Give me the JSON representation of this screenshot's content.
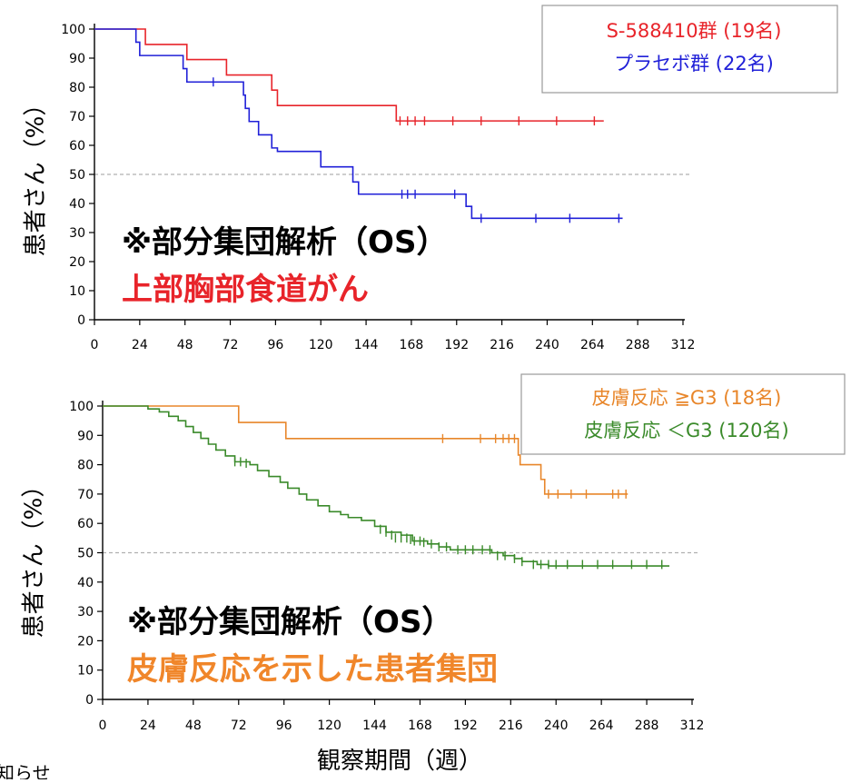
{
  "charts": [
    {
      "ylabel": "患者さん（%）",
      "legend": [
        {
          "label": "S-588410群 (19名)",
          "color": "#e8242a"
        },
        {
          "label": "プラセボ群 (22名)",
          "color": "#2020d8"
        }
      ],
      "annotation": {
        "line1": "※部分集団解析（OS）",
        "line2": "上部胸部食道がん",
        "line2_color": "#e8242a"
      }
    },
    {
      "ylabel": "患者さん（%）",
      "legend": [
        {
          "label": "皮膚反応 ≧G3 (18名)",
          "color": "#e8862a"
        },
        {
          "label": "皮膚反応 ＜G3 (120名)",
          "color": "#3a8a2a"
        }
      ],
      "annotation": {
        "line1": "※部分集団解析（OS）",
        "line2": "皮膚反応を示した患者集団",
        "line2_color": "#f0862a"
      }
    }
  ],
  "shared_xlabel": "観察期間（週）",
  "footer_fragment": "知らせ",
  "chart_data": [
    {
      "type": "line",
      "subtype": "kaplan-meier-step",
      "title": "",
      "xlabel": "",
      "ylabel": "患者さん（%）",
      "xlim": [
        0,
        312
      ],
      "ylim": [
        0,
        100
      ],
      "x_ticks": [
        0,
        24,
        48,
        72,
        96,
        120,
        144,
        168,
        192,
        216,
        240,
        264,
        288,
        312
      ],
      "y_ticks": [
        0,
        10,
        20,
        30,
        40,
        50,
        60,
        70,
        80,
        90,
        100
      ],
      "reference_line_y": 50,
      "legend_position": "top-right",
      "grid": false,
      "series": [
        {
          "name": "S-588410群 (19名)",
          "color": "#e8242a",
          "steps": [
            [
              0,
              100
            ],
            [
              27,
              94.7
            ],
            [
              49,
              89.5
            ],
            [
              70,
              84.2
            ],
            [
              94,
              79
            ],
            [
              97,
              73.7
            ],
            [
              160,
              68.4
            ],
            [
              270,
              68.4
            ]
          ],
          "censored": [
            [
              162,
              68.4
            ],
            [
              166,
              68.4
            ],
            [
              170,
              68.4
            ],
            [
              175,
              68.4
            ],
            [
              190,
              68.4
            ],
            [
              205,
              68.4
            ],
            [
              225,
              68.4
            ],
            [
              245,
              68.4
            ],
            [
              265,
              68.4
            ]
          ]
        },
        {
          "name": "プラセボ群 (22名)",
          "color": "#2020d8",
          "steps": [
            [
              0,
              100
            ],
            [
              22,
              95.5
            ],
            [
              24,
              90.9
            ],
            [
              47,
              86.4
            ],
            [
              49,
              81.8
            ],
            [
              79,
              77.3
            ],
            [
              80,
              72.7
            ],
            [
              82,
              68.2
            ],
            [
              87,
              63.6
            ],
            [
              94,
              59.1
            ],
            [
              97,
              57.9
            ],
            [
              120,
              52.6
            ],
            [
              137,
              47.4
            ],
            [
              140,
              43.2
            ],
            [
              197,
              39
            ],
            [
              200,
              34.9
            ],
            [
              280,
              34.9
            ]
          ],
          "censored": [
            [
              63,
              81.8
            ],
            [
              163,
              43.2
            ],
            [
              166,
              43.2
            ],
            [
              170,
              43.2
            ],
            [
              191,
              43.2
            ],
            [
              205,
              34.9
            ],
            [
              234,
              34.9
            ],
            [
              252,
              34.9
            ],
            [
              278,
              34.9
            ]
          ]
        }
      ]
    },
    {
      "type": "line",
      "subtype": "kaplan-meier-step",
      "title": "",
      "xlabel": "観察期間（週）",
      "ylabel": "患者さん（%）",
      "xlim": [
        0,
        312
      ],
      "ylim": [
        0,
        100
      ],
      "x_ticks": [
        0,
        24,
        48,
        72,
        96,
        120,
        144,
        168,
        192,
        216,
        240,
        264,
        288,
        312
      ],
      "y_ticks": [
        0,
        10,
        20,
        30,
        40,
        50,
        60,
        70,
        80,
        90,
        100
      ],
      "reference_line_y": 50,
      "legend_position": "top-right",
      "grid": false,
      "series": [
        {
          "name": "皮膚反応 ≧G3 (18名)",
          "color": "#e8862a",
          "steps": [
            [
              0,
              100
            ],
            [
              72,
              94.4
            ],
            [
              97,
              88.9
            ],
            [
              220,
              83.3
            ],
            [
              221,
              80
            ],
            [
              232,
              75
            ],
            [
              234,
              70
            ],
            [
              278,
              70
            ]
          ],
          "censored": [
            [
              180,
              88.9
            ],
            [
              200,
              88.9
            ],
            [
              208,
              88.9
            ],
            [
              212,
              88.9
            ],
            [
              215,
              88.9
            ],
            [
              218,
              88.9
            ],
            [
              236,
              70
            ],
            [
              241,
              70
            ],
            [
              248,
              70
            ],
            [
              256,
              70
            ],
            [
              270,
              70
            ],
            [
              273,
              70
            ],
            [
              277,
              70
            ]
          ]
        },
        {
          "name": "皮膚反応 ＜G3 (120名)",
          "color": "#3a8a2a",
          "steps": [
            [
              0,
              100
            ],
            [
              17,
              100
            ],
            [
              24,
              99
            ],
            [
              30,
              98
            ],
            [
              35,
              96.5
            ],
            [
              40,
              95
            ],
            [
              44,
              93
            ],
            [
              48,
              91
            ],
            [
              52,
              89
            ],
            [
              56,
              87
            ],
            [
              60,
              85
            ],
            [
              65,
              83
            ],
            [
              70,
              81
            ],
            [
              78,
              80
            ],
            [
              82,
              78
            ],
            [
              88,
              76
            ],
            [
              94,
              74
            ],
            [
              98,
              72
            ],
            [
              104,
              70
            ],
            [
              108,
              68
            ],
            [
              114,
              66
            ],
            [
              120,
              64
            ],
            [
              126,
              63
            ],
            [
              130,
              62
            ],
            [
              137,
              61
            ],
            [
              144,
              59
            ],
            [
              150,
              57
            ],
            [
              158,
              56
            ],
            [
              164,
              54
            ],
            [
              172,
              53
            ],
            [
              178,
              52
            ],
            [
              184,
              51
            ],
            [
              198,
              51
            ],
            [
              206,
              50
            ],
            [
              212,
              49
            ],
            [
              218,
              48
            ],
            [
              222,
              47
            ],
            [
              230,
              46
            ],
            [
              236,
              45.5
            ],
            [
              300,
              45.5
            ]
          ],
          "censored": [
            [
              70,
              81
            ],
            [
              73,
              81
            ],
            [
              76,
              80.5
            ],
            [
              147,
              58
            ],
            [
              150,
              57
            ],
            [
              153,
              56
            ],
            [
              155,
              55
            ],
            [
              158,
              55
            ],
            [
              161,
              55
            ],
            [
              163,
              54.5
            ],
            [
              165,
              54
            ],
            [
              168,
              54
            ],
            [
              170,
              53.5
            ],
            [
              174,
              53
            ],
            [
              178,
              52
            ],
            [
              182,
              52
            ],
            [
              188,
              51
            ],
            [
              192,
              51
            ],
            [
              196,
              51
            ],
            [
              201,
              51
            ],
            [
              205,
              51
            ],
            [
              209,
              49
            ],
            [
              213,
              49
            ],
            [
              218,
              48
            ],
            [
              222,
              47
            ],
            [
              228,
              46
            ],
            [
              232,
              46
            ],
            [
              236,
              46
            ],
            [
              240,
              46
            ],
            [
              246,
              46
            ],
            [
              254,
              46
            ],
            [
              262,
              46
            ],
            [
              270,
              46
            ],
            [
              280,
              46
            ],
            [
              288,
              46
            ],
            [
              296,
              46
            ]
          ]
        }
      ]
    }
  ]
}
